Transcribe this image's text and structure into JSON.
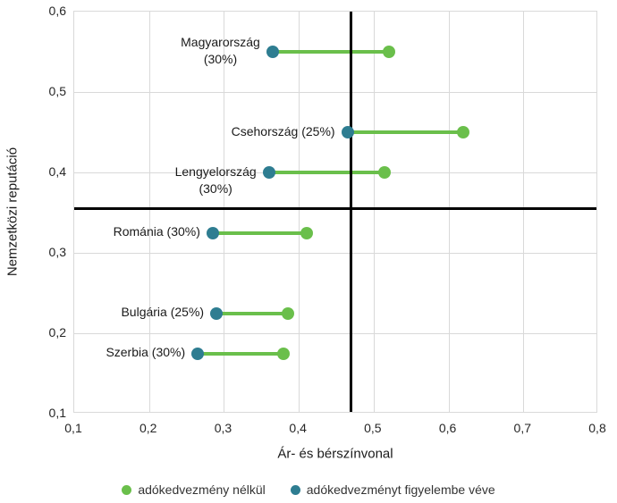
{
  "chart_data": {
    "type": "scatter",
    "variant": "dumbbell",
    "title": "",
    "xlabel": "Ár- és bérszínvonal",
    "ylabel": "Nemzetközi reputáció",
    "xlim": [
      0.1,
      0.8
    ],
    "ylim": [
      0.1,
      0.6
    ],
    "xticks": [
      0.1,
      0.2,
      0.3,
      0.4,
      0.5,
      0.6,
      0.7,
      0.8
    ],
    "yticks": [
      0.1,
      0.2,
      0.3,
      0.4,
      0.5,
      0.6
    ],
    "xtick_labels": [
      "0,1",
      "0,2",
      "0,3",
      "0,4",
      "0,5",
      "0,6",
      "0,7",
      "0,8"
    ],
    "ytick_labels": [
      "0,1",
      "0,2",
      "0,3",
      "0,4",
      "0,5",
      "0,6"
    ],
    "grid": true,
    "legend_position": "bottom-center",
    "colors": {
      "grid": "#d9d9d9",
      "plot_border": "#d9d9d9",
      "quadrant_line": "#000000",
      "tick_text": "#262626",
      "green": "#6abf4b",
      "teal": "#2e7d91"
    },
    "series": [
      {
        "name": "adókedvezmény nélkül",
        "role": "without-tax-benefit",
        "color": "#6abf4b"
      },
      {
        "name": "adókedvezményt figyelembe véve",
        "role": "with-tax-benefit",
        "color": "#2e7d91"
      }
    ],
    "quadrant_lines": {
      "vertical_x": 0.47,
      "horizontal_y": 0.355
    },
    "countries": [
      {
        "label": "Magyarország (30%)",
        "label_lines": [
          "Magyarország",
          "(30%)"
        ],
        "reputation": 0.55,
        "price_without_tax": 0.52,
        "price_with_tax": 0.365,
        "label_dy": 0
      },
      {
        "label": "Csehország (25%)",
        "label_lines": [
          "Csehország (25%)"
        ],
        "reputation": 0.45,
        "price_without_tax": 0.62,
        "price_with_tax": 0.465,
        "label_dy": 0
      },
      {
        "label": "Lengyelország (30%)",
        "label_lines": [
          "Lengyelország",
          "(30%)"
        ],
        "reputation": 0.4,
        "price_without_tax": 0.515,
        "price_with_tax": 0.36,
        "label_dy": 10
      },
      {
        "label": "Románia (30%)",
        "label_lines": [
          "Románia (30%)"
        ],
        "reputation": 0.325,
        "price_without_tax": 0.41,
        "price_with_tax": 0.285,
        "label_dy": 0
      },
      {
        "label": "Bulgária (25%)",
        "label_lines": [
          "Bulgária (25%)"
        ],
        "reputation": 0.225,
        "price_without_tax": 0.385,
        "price_with_tax": 0.29,
        "label_dy": 0
      },
      {
        "label": "Szerbia (30%)",
        "label_lines": [
          "Szerbia (30%)"
        ],
        "reputation": 0.175,
        "price_without_tax": 0.38,
        "price_with_tax": 0.265,
        "label_dy": 0
      }
    ]
  }
}
